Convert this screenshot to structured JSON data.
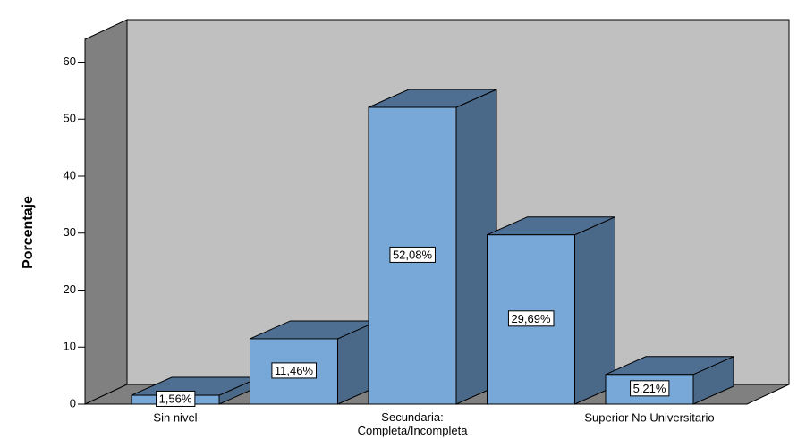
{
  "chart_data": {
    "type": "bar3d",
    "y_label": "Porcentaje",
    "categories": [
      "Sin nivel",
      null,
      "Secundaria:\nCompleta/Incompleta",
      null,
      "Superior No Universitario"
    ],
    "values": [
      1.56,
      11.46,
      52.08,
      29.69,
      5.21
    ],
    "value_labels": [
      "1,56%",
      "11,46%",
      "52,08%",
      "29,69%",
      "5,21%"
    ],
    "color": "#78a8d8",
    "ylim": [
      0,
      64
    ],
    "yticks": [
      0,
      10,
      20,
      30,
      40,
      50,
      60
    ]
  }
}
